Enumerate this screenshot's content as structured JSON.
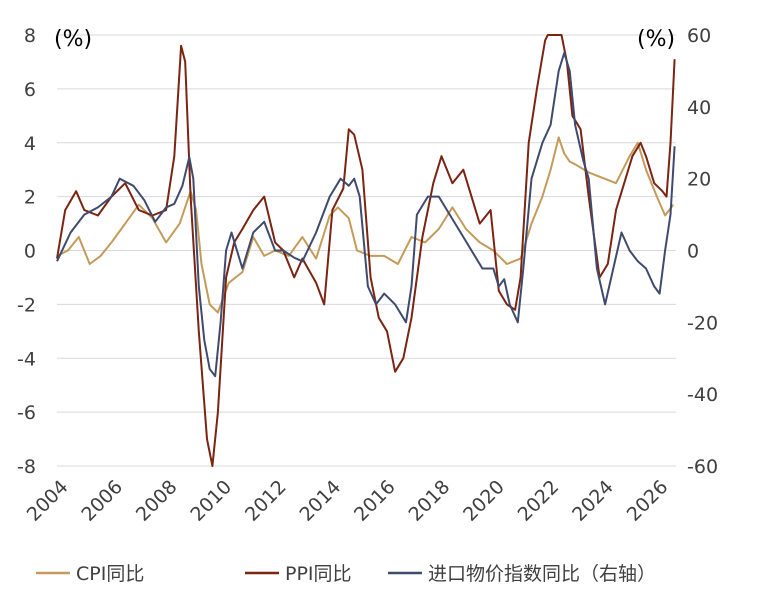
{
  "chart_data": {
    "type": "line",
    "left_unit": "(%)",
    "right_unit": "(%)",
    "y_left": {
      "min": -8,
      "max": 8,
      "ticks": [
        8,
        6,
        4,
        2,
        0,
        -2,
        -4,
        -6,
        -8
      ]
    },
    "y_right": {
      "min": -60,
      "max": 60,
      "ticks": [
        60,
        40,
        20,
        0,
        -20,
        -40,
        -60
      ]
    },
    "x_range": [
      2004.0,
      2026.7
    ],
    "x_ticks": [
      "2004",
      "2006",
      "2008",
      "2010",
      "2012",
      "2014",
      "2016",
      "2018",
      "2020",
      "2022",
      "2024",
      "2026"
    ],
    "grid": "horizontal",
    "legend_position": "bottom",
    "colors": {
      "cpi": "#c59a5a",
      "ppi": "#7b2412",
      "imp": "#3f4a6e"
    },
    "legend": [
      {
        "key": "cpi",
        "label": "CPI同比"
      },
      {
        "key": "ppi",
        "label": "PPI同比"
      },
      {
        "key": "imp",
        "label": "进口物价指数同比（右轴）"
      }
    ],
    "series": [
      {
        "key": "cpi",
        "name": "CPI同比",
        "axis": "left",
        "x": [
          2004.0,
          2004.4,
          2004.8,
          2005.2,
          2005.6,
          2006.0,
          2006.5,
          2007.0,
          2007.5,
          2008.0,
          2008.5,
          2008.9,
          2009.1,
          2009.3,
          2009.6,
          2009.9,
          2010.3,
          2010.8,
          2011.2,
          2011.6,
          2012.0,
          2012.5,
          2013.0,
          2013.5,
          2014.0,
          2014.3,
          2014.7,
          2015.0,
          2015.5,
          2016.0,
          2016.5,
          2017.0,
          2017.5,
          2018.0,
          2018.5,
          2019.0,
          2019.5,
          2020.0,
          2020.5,
          2021.0,
          2021.4,
          2021.8,
          2022.1,
          2022.4,
          2022.6,
          2022.8,
          2023.0,
          2023.5,
          2024.0,
          2024.5,
          2025.0,
          2025.3,
          2025.6,
          2026.0,
          2026.3,
          2026.6
        ],
        "y": [
          -0.2,
          0.0,
          0.5,
          -0.5,
          -0.2,
          0.3,
          1.0,
          1.7,
          1.2,
          0.3,
          1.0,
          2.2,
          1.5,
          -0.5,
          -2.0,
          -2.3,
          -1.2,
          -0.8,
          0.5,
          -0.2,
          0.0,
          -0.2,
          0.5,
          -0.3,
          1.3,
          1.6,
          1.2,
          0.0,
          -0.2,
          -0.2,
          -0.5,
          0.5,
          0.3,
          0.8,
          1.6,
          0.8,
          0.3,
          0.0,
          -0.5,
          -0.3,
          1.0,
          2.0,
          3.0,
          4.2,
          3.6,
          3.3,
          3.2,
          2.9,
          2.7,
          2.5,
          3.5,
          4.0,
          3.0,
          2.0,
          1.3,
          1.7
        ]
      },
      {
        "key": "ppi",
        "name": "PPI同比",
        "axis": "left",
        "x": [
          2004.0,
          2004.3,
          2004.7,
          2005.0,
          2005.5,
          2006.0,
          2006.5,
          2007.0,
          2007.5,
          2008.0,
          2008.3,
          2008.55,
          2008.7,
          2008.9,
          2009.2,
          2009.5,
          2009.7,
          2009.9,
          2010.2,
          2010.5,
          2010.8,
          2011.2,
          2011.6,
          2012.0,
          2012.3,
          2012.7,
          2013.0,
          2013.5,
          2013.8,
          2014.1,
          2014.5,
          2014.7,
          2014.9,
          2015.2,
          2015.5,
          2015.8,
          2016.1,
          2016.4,
          2016.7,
          2017.0,
          2017.4,
          2017.8,
          2018.1,
          2018.5,
          2018.9,
          2019.2,
          2019.5,
          2019.9,
          2020.2,
          2020.5,
          2020.8,
          2021.0,
          2021.3,
          2021.6,
          2021.9,
          2022.0,
          2022.15,
          2022.5,
          2022.7,
          2022.9,
          2023.2,
          2023.5,
          2023.9,
          2024.2,
          2024.5,
          2024.8,
          2025.1,
          2025.4,
          2025.6,
          2025.9,
          2026.2,
          2026.35,
          2026.5,
          2026.65
        ],
        "y": [
          -0.3,
          1.5,
          2.2,
          1.5,
          1.3,
          2.0,
          2.5,
          1.5,
          1.3,
          1.5,
          3.5,
          7.6,
          7.0,
          2.0,
          -3.0,
          -7.0,
          -8.2,
          -6.0,
          -1.0,
          0.3,
          0.8,
          1.5,
          2.0,
          0.3,
          0.0,
          -1.0,
          -0.3,
          -1.2,
          -2.0,
          1.5,
          2.3,
          4.5,
          4.3,
          3.0,
          -1.0,
          -2.5,
          -3.0,
          -4.5,
          -4.0,
          -2.5,
          0.5,
          2.5,
          3.5,
          2.5,
          3.0,
          2.0,
          1.0,
          1.5,
          -1.5,
          -2.0,
          -2.2,
          -1.0,
          4.0,
          6.0,
          7.8,
          8.0,
          10.0,
          9.0,
          7.0,
          5.0,
          4.5,
          2.0,
          -1.0,
          -0.5,
          1.5,
          2.5,
          3.5,
          4.0,
          3.5,
          2.5,
          2.2,
          2.0,
          4.0,
          7.1
        ]
      },
      {
        "key": "imp",
        "name": "进口物价指数同比（右轴）",
        "axis": "right",
        "x": [
          2004.0,
          2004.5,
          2005.0,
          2005.5,
          2006.0,
          2006.3,
          2006.8,
          2007.2,
          2007.6,
          2008.0,
          2008.3,
          2008.6,
          2008.85,
          2009.0,
          2009.2,
          2009.4,
          2009.6,
          2009.8,
          2010.0,
          2010.2,
          2010.4,
          2010.8,
          2011.2,
          2011.6,
          2012.0,
          2012.3,
          2012.7,
          2013.0,
          2013.5,
          2014.0,
          2014.4,
          2014.7,
          2014.9,
          2015.1,
          2015.4,
          2015.7,
          2016.0,
          2016.4,
          2016.8,
          2017.0,
          2017.2,
          2017.6,
          2018.0,
          2018.4,
          2018.8,
          2019.2,
          2019.6,
          2020.0,
          2020.2,
          2020.4,
          2020.6,
          2020.9,
          2021.1,
          2021.4,
          2021.8,
          2022.1,
          2022.4,
          2022.6,
          2022.8,
          2023.0,
          2023.3,
          2023.5,
          2023.8,
          2024.1,
          2024.4,
          2024.7,
          2025.0,
          2025.3,
          2025.6,
          2025.9,
          2026.1,
          2026.3,
          2026.5,
          2026.65
        ],
        "y": [
          -3,
          5,
          10,
          12,
          15,
          20,
          18,
          14,
          8,
          12,
          13,
          18,
          26,
          20,
          -10,
          -25,
          -33,
          -35,
          -20,
          0,
          5,
          -5,
          5,
          8,
          0,
          0,
          -2,
          -3,
          5,
          15,
          20,
          18,
          20,
          15,
          -10,
          -15,
          -12,
          -15,
          -20,
          -10,
          10,
          15,
          15,
          10,
          5,
          0,
          -5,
          -5,
          -10,
          -8,
          -15,
          -20,
          -5,
          20,
          30,
          35,
          50,
          55,
          50,
          35,
          25,
          20,
          -5,
          -15,
          -5,
          5,
          0,
          -3,
          -5,
          -10,
          -12,
          0,
          10,
          29
        ]
      }
    ]
  }
}
